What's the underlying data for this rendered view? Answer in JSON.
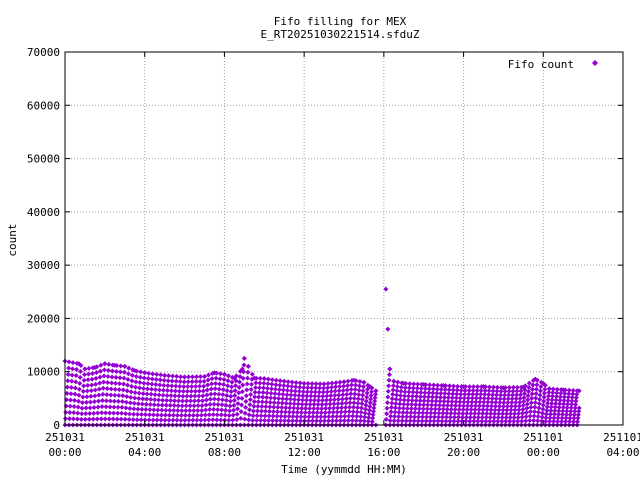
{
  "chart_data": {
    "type": "scatter",
    "title": "Fifo filling for MEX",
    "subtitle": "E_RT20251030221514.sfduZ",
    "xlabel": "Time (yymmdd HH:MM)",
    "ylabel": "count",
    "ylim": [
      0,
      70000
    ],
    "y_ticks": [
      0,
      10000,
      20000,
      30000,
      40000,
      50000,
      60000,
      70000
    ],
    "xlim_hours": [
      0,
      28
    ],
    "x_ticks": [
      {
        "hour": 0,
        "date": "251031",
        "time": "00:00"
      },
      {
        "hour": 4,
        "date": "251031",
        "time": "04:00"
      },
      {
        "hour": 8,
        "date": "251031",
        "time": "08:00"
      },
      {
        "hour": 12,
        "date": "251031",
        "time": "12:00"
      },
      {
        "hour": 16,
        "date": "251031",
        "time": "16:00"
      },
      {
        "hour": 20,
        "date": "251031",
        "time": "20:00"
      },
      {
        "hour": 24,
        "date": "251101",
        "time": "00:00"
      },
      {
        "hour": 28,
        "date": "251101",
        "time": "04:00"
      }
    ],
    "grid": true,
    "legend_position": "top-right",
    "series": [
      {
        "name": "Fifo count",
        "color": "#9400d3",
        "marker": "diamond",
        "pattern": "sawtooth",
        "envelope": [
          [
            0.0,
            12000
          ],
          [
            0.7,
            11500
          ],
          [
            1.0,
            10500
          ],
          [
            1.5,
            10800
          ],
          [
            2.0,
            11500
          ],
          [
            2.5,
            11200
          ],
          [
            3.0,
            11000
          ],
          [
            3.5,
            10200
          ],
          [
            4.0,
            9800
          ],
          [
            5.0,
            9300
          ],
          [
            6.0,
            9000
          ],
          [
            7.0,
            9100
          ],
          [
            7.5,
            9800
          ],
          [
            8.0,
            9500
          ],
          [
            8.5,
            8800
          ],
          [
            8.9,
            10500
          ],
          [
            9.0,
            12500
          ],
          [
            9.2,
            11000
          ],
          [
            9.5,
            8800
          ],
          [
            10.0,
            8700
          ],
          [
            11.0,
            8200
          ],
          [
            12.0,
            7800
          ],
          [
            13.0,
            7700
          ],
          [
            14.0,
            8100
          ],
          [
            14.5,
            8400
          ],
          [
            15.0,
            8000
          ],
          [
            15.3,
            7200
          ],
          [
            15.6,
            6400
          ]
        ],
        "envelope_2": [
          [
            16.1,
            25500
          ],
          [
            16.2,
            18000
          ],
          [
            16.3,
            10500
          ],
          [
            16.5,
            8200
          ],
          [
            17.0,
            7800
          ],
          [
            18.0,
            7600
          ],
          [
            19.0,
            7400
          ],
          [
            20.0,
            7200
          ],
          [
            21.0,
            7200
          ],
          [
            22.0,
            7000
          ],
          [
            23.0,
            7100
          ],
          [
            23.6,
            8600
          ],
          [
            24.0,
            7800
          ],
          [
            24.3,
            6800
          ],
          [
            25.0,
            6600
          ],
          [
            25.8,
            6400
          ]
        ]
      }
    ]
  }
}
